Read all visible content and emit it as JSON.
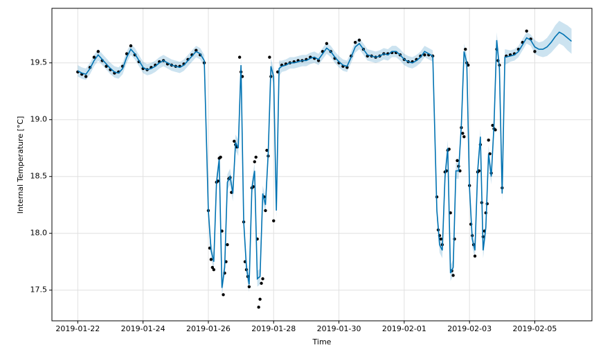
{
  "chart_data": {
    "type": "line",
    "xlabel": "Time",
    "ylabel": "Internal Temperature [°C]",
    "xlim": [
      "2019-01-21T05:00",
      "2019-02-06T18:00"
    ],
    "ylim": [
      17.23,
      19.98
    ],
    "xticks": [
      "2019-01-22",
      "2019-01-24",
      "2019-01-26",
      "2019-01-28",
      "2019-01-30",
      "2019-02-01",
      "2019-02-03",
      "2019-02-05"
    ],
    "yticks": [
      17.5,
      {
        "value": 18,
        "label": "18.0"
      },
      18.5,
      {
        "value": 19,
        "label": "19.0"
      },
      19.5
    ],
    "grid": true,
    "forecast": {
      "color": "#0072B2",
      "x": [
        "2019-01-22T00:00",
        "2019-01-22T03:00",
        "2019-01-22T06:00",
        "2019-01-22T09:00",
        "2019-01-22T12:00",
        "2019-01-22T15:00",
        "2019-01-22T18:00",
        "2019-01-22T21:00",
        "2019-01-23T00:00",
        "2019-01-23T03:00",
        "2019-01-23T06:00",
        "2019-01-23T09:00",
        "2019-01-23T12:00",
        "2019-01-23T15:00",
        "2019-01-23T18:00",
        "2019-01-23T21:00",
        "2019-01-24T00:00",
        "2019-01-24T03:00",
        "2019-01-24T06:00",
        "2019-01-24T09:00",
        "2019-01-24T12:00",
        "2019-01-24T15:00",
        "2019-01-24T18:00",
        "2019-01-24T21:00",
        "2019-01-25T00:00",
        "2019-01-25T03:00",
        "2019-01-25T06:00",
        "2019-01-25T09:00",
        "2019-01-25T12:00",
        "2019-01-25T15:00",
        "2019-01-25T18:00",
        "2019-01-25T21:00",
        "2019-01-26T00:00",
        "2019-01-26T02:00",
        "2019-01-26T04:00",
        "2019-01-26T06:00",
        "2019-01-26T08:00",
        "2019-01-26T10:00",
        "2019-01-26T12:00",
        "2019-01-26T14:00",
        "2019-01-26T16:00",
        "2019-01-26T18:00",
        "2019-01-26T20:00",
        "2019-01-26T22:00",
        "2019-01-27T00:00",
        "2019-01-27T02:00",
        "2019-01-27T04:00",
        "2019-01-27T06:00",
        "2019-01-27T08:00",
        "2019-01-27T10:00",
        "2019-01-27T12:00",
        "2019-01-27T14:00",
        "2019-01-27T16:00",
        "2019-01-27T18:00",
        "2019-01-27T20:00",
        "2019-01-27T22:00",
        "2019-01-28T00:00",
        "2019-01-28T02:00",
        "2019-01-28T04:00",
        "2019-01-28T06:00",
        "2019-01-28T09:00",
        "2019-01-28T12:00",
        "2019-01-28T15:00",
        "2019-01-28T18:00",
        "2019-01-28T21:00",
        "2019-01-29T00:00",
        "2019-01-29T03:00",
        "2019-01-29T06:00",
        "2019-01-29T09:00",
        "2019-01-29T12:00",
        "2019-01-29T15:00",
        "2019-01-29T18:00",
        "2019-01-29T21:00",
        "2019-01-30T00:00",
        "2019-01-30T03:00",
        "2019-01-30T06:00",
        "2019-01-30T09:00",
        "2019-01-30T12:00",
        "2019-01-30T15:00",
        "2019-01-30T18:00",
        "2019-01-30T21:00",
        "2019-01-31T00:00",
        "2019-01-31T03:00",
        "2019-01-31T06:00",
        "2019-01-31T09:00",
        "2019-01-31T12:00",
        "2019-01-31T15:00",
        "2019-01-31T18:00",
        "2019-01-31T21:00",
        "2019-02-01T00:00",
        "2019-02-01T03:00",
        "2019-02-01T06:00",
        "2019-02-01T09:00",
        "2019-02-01T12:00",
        "2019-02-01T15:00",
        "2019-02-01T18:00",
        "2019-02-01T21:00",
        "2019-02-02T00:00",
        "2019-02-02T02:00",
        "2019-02-02T04:00",
        "2019-02-02T06:00",
        "2019-02-02T08:00",
        "2019-02-02T10:00",
        "2019-02-02T12:00",
        "2019-02-02T14:00",
        "2019-02-02T16:00",
        "2019-02-02T18:00",
        "2019-02-02T20:00",
        "2019-02-02T22:00",
        "2019-02-03T00:00",
        "2019-02-03T02:00",
        "2019-02-03T04:00",
        "2019-02-03T06:00",
        "2019-02-03T08:00",
        "2019-02-03T10:00",
        "2019-02-03T12:00",
        "2019-02-03T14:00",
        "2019-02-03T16:00",
        "2019-02-03T18:00",
        "2019-02-03T20:00",
        "2019-02-03T22:00",
        "2019-02-04T00:00",
        "2019-02-04T02:00",
        "2019-02-04T06:00",
        "2019-02-04T09:00",
        "2019-02-04T12:00",
        "2019-02-04T15:00",
        "2019-02-04T18:00",
        "2019-02-04T21:00",
        "2019-02-05T00:00",
        "2019-02-05T03:00",
        "2019-02-05T06:00",
        "2019-02-05T09:00",
        "2019-02-05T12:00",
        "2019-02-05T15:00",
        "2019-02-05T18:00",
        "2019-02-05T21:00",
        "2019-02-06T00:00",
        "2019-02-06T03:00"
      ],
      "yhat": [
        19.43,
        19.41,
        19.4,
        19.45,
        19.52,
        19.57,
        19.53,
        19.49,
        19.45,
        19.42,
        19.41,
        19.45,
        19.55,
        19.62,
        19.58,
        19.52,
        19.46,
        19.44,
        19.45,
        19.47,
        19.5,
        19.52,
        19.5,
        19.48,
        19.47,
        19.46,
        19.48,
        19.52,
        19.56,
        19.6,
        19.58,
        19.52,
        18.2,
        17.85,
        17.75,
        18.45,
        18.65,
        17.52,
        17.7,
        18.45,
        18.5,
        18.35,
        18.8,
        18.75,
        19.48,
        18.1,
        17.7,
        17.55,
        18.4,
        18.55,
        17.6,
        17.62,
        18.35,
        18.25,
        18.7,
        19.47,
        19.38,
        18.2,
        19.45,
        19.47,
        19.48,
        19.5,
        19.5,
        19.51,
        19.52,
        19.52,
        19.54,
        19.55,
        19.53,
        19.58,
        19.63,
        19.6,
        19.55,
        19.51,
        19.48,
        19.47,
        19.55,
        19.64,
        19.67,
        19.62,
        19.57,
        19.56,
        19.55,
        19.56,
        19.58,
        19.57,
        19.6,
        19.6,
        19.57,
        19.53,
        19.51,
        19.5,
        19.52,
        19.55,
        19.6,
        19.58,
        19.56,
        18.2,
        17.9,
        17.85,
        18.5,
        18.75,
        17.65,
        17.7,
        18.55,
        18.55,
        18.95,
        19.6,
        19.5,
        18.4,
        17.95,
        17.85,
        18.55,
        18.85,
        17.85,
        18.05,
        18.7,
        18.5,
        18.95,
        19.7,
        19.45,
        18.35,
        19.55,
        19.56,
        19.57,
        19.6,
        19.66,
        19.72,
        19.7,
        19.64,
        19.62,
        19.62,
        19.64,
        19.68,
        19.73,
        19.77,
        19.75,
        19.72,
        19.69
      ],
      "lower": [
        19.38,
        19.36,
        19.35,
        19.4,
        19.47,
        19.52,
        19.48,
        19.44,
        19.4,
        19.37,
        19.36,
        19.4,
        19.5,
        19.57,
        19.53,
        19.47,
        19.41,
        19.39,
        19.4,
        19.42,
        19.45,
        19.47,
        19.45,
        19.43,
        19.42,
        19.41,
        19.43,
        19.47,
        19.51,
        19.55,
        19.53,
        19.47,
        18.13,
        17.78,
        17.68,
        18.38,
        18.58,
        17.45,
        17.63,
        18.38,
        18.43,
        18.28,
        18.73,
        18.68,
        19.41,
        18.03,
        17.63,
        17.48,
        18.33,
        18.48,
        17.53,
        17.55,
        18.28,
        18.18,
        18.63,
        19.4,
        19.31,
        18.13,
        19.38,
        19.42,
        19.43,
        19.45,
        19.45,
        19.46,
        19.47,
        19.47,
        19.49,
        19.5,
        19.48,
        19.53,
        19.58,
        19.55,
        19.5,
        19.46,
        19.43,
        19.42,
        19.5,
        19.59,
        19.62,
        19.57,
        19.52,
        19.51,
        19.5,
        19.51,
        19.53,
        19.52,
        19.55,
        19.55,
        19.52,
        19.48,
        19.46,
        19.45,
        19.47,
        19.5,
        19.55,
        19.53,
        19.51,
        18.13,
        17.83,
        17.78,
        18.43,
        18.68,
        17.58,
        17.63,
        18.48,
        18.48,
        18.88,
        19.53,
        19.43,
        18.33,
        17.88,
        17.78,
        18.48,
        18.78,
        17.78,
        17.98,
        18.63,
        18.43,
        18.88,
        19.63,
        19.38,
        18.28,
        19.48,
        19.51,
        19.52,
        19.55,
        19.61,
        19.67,
        19.65,
        19.58,
        19.56,
        19.55,
        19.56,
        19.59,
        19.63,
        19.67,
        19.65,
        19.61,
        19.58
      ],
      "upper": [
        19.48,
        19.46,
        19.45,
        19.5,
        19.57,
        19.62,
        19.58,
        19.54,
        19.5,
        19.47,
        19.46,
        19.5,
        19.6,
        19.67,
        19.63,
        19.57,
        19.51,
        19.49,
        19.5,
        19.52,
        19.55,
        19.57,
        19.55,
        19.53,
        19.52,
        19.51,
        19.53,
        19.57,
        19.61,
        19.65,
        19.63,
        19.57,
        18.27,
        17.92,
        17.82,
        18.52,
        18.72,
        17.59,
        17.77,
        18.52,
        18.57,
        18.42,
        18.87,
        18.82,
        19.55,
        18.17,
        17.77,
        17.62,
        18.47,
        18.62,
        17.67,
        17.69,
        18.42,
        18.32,
        18.77,
        19.54,
        19.45,
        18.27,
        19.52,
        19.52,
        19.53,
        19.55,
        19.55,
        19.56,
        19.57,
        19.57,
        19.59,
        19.6,
        19.58,
        19.63,
        19.68,
        19.65,
        19.6,
        19.56,
        19.53,
        19.52,
        19.6,
        19.69,
        19.72,
        19.67,
        19.62,
        19.61,
        19.6,
        19.61,
        19.63,
        19.62,
        19.65,
        19.65,
        19.62,
        19.58,
        19.56,
        19.55,
        19.57,
        19.6,
        19.65,
        19.63,
        19.61,
        18.27,
        17.97,
        17.92,
        18.57,
        18.82,
        17.72,
        17.77,
        18.62,
        18.62,
        19.02,
        19.67,
        19.57,
        18.47,
        18.02,
        17.92,
        18.62,
        18.92,
        17.92,
        18.12,
        18.77,
        18.57,
        19.02,
        19.77,
        19.52,
        18.42,
        19.62,
        19.61,
        19.62,
        19.65,
        19.71,
        19.77,
        19.75,
        19.7,
        19.68,
        19.69,
        19.72,
        19.77,
        19.83,
        19.87,
        19.85,
        19.83,
        19.8
      ]
    },
    "observed": {
      "color": "#000000",
      "x": [
        "2019-01-22T00:00",
        "2019-01-22T03:00",
        "2019-01-22T06:00",
        "2019-01-22T09:00",
        "2019-01-22T12:00",
        "2019-01-22T15:00",
        "2019-01-22T18:00",
        "2019-01-22T21:00",
        "2019-01-23T00:00",
        "2019-01-23T03:00",
        "2019-01-23T06:00",
        "2019-01-23T09:00",
        "2019-01-23T12:00",
        "2019-01-23T15:00",
        "2019-01-23T18:00",
        "2019-01-23T21:00",
        "2019-01-24T00:00",
        "2019-01-24T03:00",
        "2019-01-24T06:00",
        "2019-01-24T09:00",
        "2019-01-24T12:00",
        "2019-01-24T15:00",
        "2019-01-24T18:00",
        "2019-01-24T21:00",
        "2019-01-25T00:00",
        "2019-01-25T03:00",
        "2019-01-25T06:00",
        "2019-01-25T09:00",
        "2019-01-25T12:00",
        "2019-01-25T15:00",
        "2019-01-25T18:00",
        "2019-01-25T21:00",
        "2019-01-26T00:00",
        "2019-01-26T01:00",
        "2019-01-26T02:00",
        "2019-01-26T03:00",
        "2019-01-26T04:00",
        "2019-01-26T06:00",
        "2019-01-26T07:00",
        "2019-01-26T08:00",
        "2019-01-26T09:00",
        "2019-01-26T10:00",
        "2019-01-26T11:00",
        "2019-01-26T12:00",
        "2019-01-26T13:00",
        "2019-01-26T14:00",
        "2019-01-26T15:00",
        "2019-01-26T16:00",
        "2019-01-26T17:00",
        "2019-01-26T19:00",
        "2019-01-26T20:00",
        "2019-01-26T21:00",
        "2019-01-26T23:00",
        "2019-01-27T00:00",
        "2019-01-27T01:00",
        "2019-01-27T02:00",
        "2019-01-27T03:00",
        "2019-01-27T04:00",
        "2019-01-27T05:00",
        "2019-01-27T06:00",
        "2019-01-27T08:00",
        "2019-01-27T09:00",
        "2019-01-27T10:00",
        "2019-01-27T11:00",
        "2019-01-27T12:00",
        "2019-01-27T13:00",
        "2019-01-27T14:00",
        "2019-01-27T15:00",
        "2019-01-27T16:00",
        "2019-01-27T17:00",
        "2019-01-27T18:00",
        "2019-01-27T19:00",
        "2019-01-27T20:00",
        "2019-01-27T21:00",
        "2019-01-27T22:00",
        "2019-01-28T00:00",
        "2019-01-28T03:00",
        "2019-01-28T06:00",
        "2019-01-28T09:00",
        "2019-01-28T12:00",
        "2019-01-28T15:00",
        "2019-01-28T18:00",
        "2019-01-28T21:00",
        "2019-01-29T00:00",
        "2019-01-29T03:00",
        "2019-01-29T06:00",
        "2019-01-29T09:00",
        "2019-01-29T12:00",
        "2019-01-29T15:00",
        "2019-01-29T18:00",
        "2019-01-29T21:00",
        "2019-01-30T00:00",
        "2019-01-30T03:00",
        "2019-01-30T06:00",
        "2019-01-30T09:00",
        "2019-01-30T12:00",
        "2019-01-30T15:00",
        "2019-01-30T18:00",
        "2019-01-30T21:00",
        "2019-01-31T00:00",
        "2019-01-31T03:00",
        "2019-01-31T06:00",
        "2019-01-31T09:00",
        "2019-01-31T12:00",
        "2019-01-31T15:00",
        "2019-01-31T18:00",
        "2019-01-31T21:00",
        "2019-02-01T00:00",
        "2019-02-01T03:00",
        "2019-02-01T06:00",
        "2019-02-01T09:00",
        "2019-02-01T12:00",
        "2019-02-01T15:00",
        "2019-02-01T18:00",
        "2019-02-01T21:00",
        "2019-02-02T00:00",
        "2019-02-02T01:00",
        "2019-02-02T02:00",
        "2019-02-02T03:00",
        "2019-02-02T04:00",
        "2019-02-02T06:00",
        "2019-02-02T07:00",
        "2019-02-02T08:00",
        "2019-02-02T09:00",
        "2019-02-02T10:00",
        "2019-02-02T11:00",
        "2019-02-02T12:00",
        "2019-02-02T13:00",
        "2019-02-02T15:00",
        "2019-02-02T16:00",
        "2019-02-02T17:00",
        "2019-02-02T18:00",
        "2019-02-02T19:00",
        "2019-02-02T20:00",
        "2019-02-02T21:00",
        "2019-02-02T22:00",
        "2019-02-02T23:00",
        "2019-02-03T00:00",
        "2019-02-03T01:00",
        "2019-02-03T02:00",
        "2019-02-03T03:00",
        "2019-02-03T04:00",
        "2019-02-03T06:00",
        "2019-02-03T07:00",
        "2019-02-03T08:00",
        "2019-02-03T09:00",
        "2019-02-03T10:00",
        "2019-02-03T11:00",
        "2019-02-03T12:00",
        "2019-02-03T13:00",
        "2019-02-03T14:00",
        "2019-02-03T15:00",
        "2019-02-03T16:00",
        "2019-02-03T17:00",
        "2019-02-03T18:00",
        "2019-02-03T19:00",
        "2019-02-03T20:00",
        "2019-02-03T21:00",
        "2019-02-03T22:00",
        "2019-02-04T00:00",
        "2019-02-04T03:00",
        "2019-02-04T06:00",
        "2019-02-04T09:00",
        "2019-02-04T12:00",
        "2019-02-04T15:00",
        "2019-02-04T18:00",
        "2019-02-04T21:00",
        "2019-02-05T00:00"
      ],
      "y": [
        19.42,
        19.4,
        19.38,
        19.46,
        19.55,
        19.6,
        19.52,
        19.47,
        19.44,
        19.41,
        19.42,
        19.47,
        19.58,
        19.65,
        19.57,
        19.51,
        19.45,
        19.44,
        19.46,
        19.48,
        19.51,
        19.52,
        19.49,
        19.48,
        19.47,
        19.47,
        19.49,
        19.53,
        19.57,
        19.61,
        19.57,
        19.5,
        18.2,
        17.87,
        17.77,
        17.7,
        17.68,
        18.45,
        18.46,
        18.66,
        18.67,
        18.02,
        17.46,
        17.65,
        17.75,
        17.9,
        18.48,
        18.49,
        18.36,
        18.81,
        18.78,
        18.76,
        19.55,
        19.42,
        19.38,
        18.1,
        17.75,
        17.68,
        17.62,
        17.53,
        18.4,
        18.41,
        18.63,
        18.67,
        17.95,
        17.35,
        17.42,
        17.56,
        17.6,
        18.32,
        18.2,
        18.73,
        18.68,
        19.55,
        19.38,
        18.11,
        19.42,
        19.48,
        19.49,
        19.5,
        19.51,
        19.52,
        19.52,
        19.53,
        19.55,
        19.54,
        19.52,
        19.6,
        19.67,
        19.6,
        19.54,
        19.5,
        19.47,
        19.46,
        19.56,
        19.68,
        19.7,
        19.62,
        19.56,
        19.56,
        19.55,
        19.56,
        19.58,
        19.58,
        19.59,
        19.59,
        19.57,
        19.53,
        19.51,
        19.51,
        19.53,
        19.56,
        19.57,
        19.57,
        19.56,
        18.32,
        18.03,
        17.98,
        17.95,
        17.9,
        18.54,
        18.55,
        18.73,
        18.74,
        18.18,
        17.67,
        17.63,
        17.95,
        18.64,
        18.59,
        18.55,
        18.93,
        18.88,
        18.85,
        19.62,
        19.5,
        19.48,
        18.42,
        18.08,
        17.98,
        17.9,
        17.8,
        18.54,
        18.55,
        18.78,
        18.27,
        17.97,
        18.02,
        18.18,
        18.26,
        18.82,
        18.7,
        18.53,
        18.95,
        18.92,
        18.91,
        19.62,
        19.52,
        19.48,
        18.4,
        19.56,
        19.57,
        19.58,
        19.62,
        19.68,
        19.78,
        19.71,
        19.6
      ]
    }
  }
}
